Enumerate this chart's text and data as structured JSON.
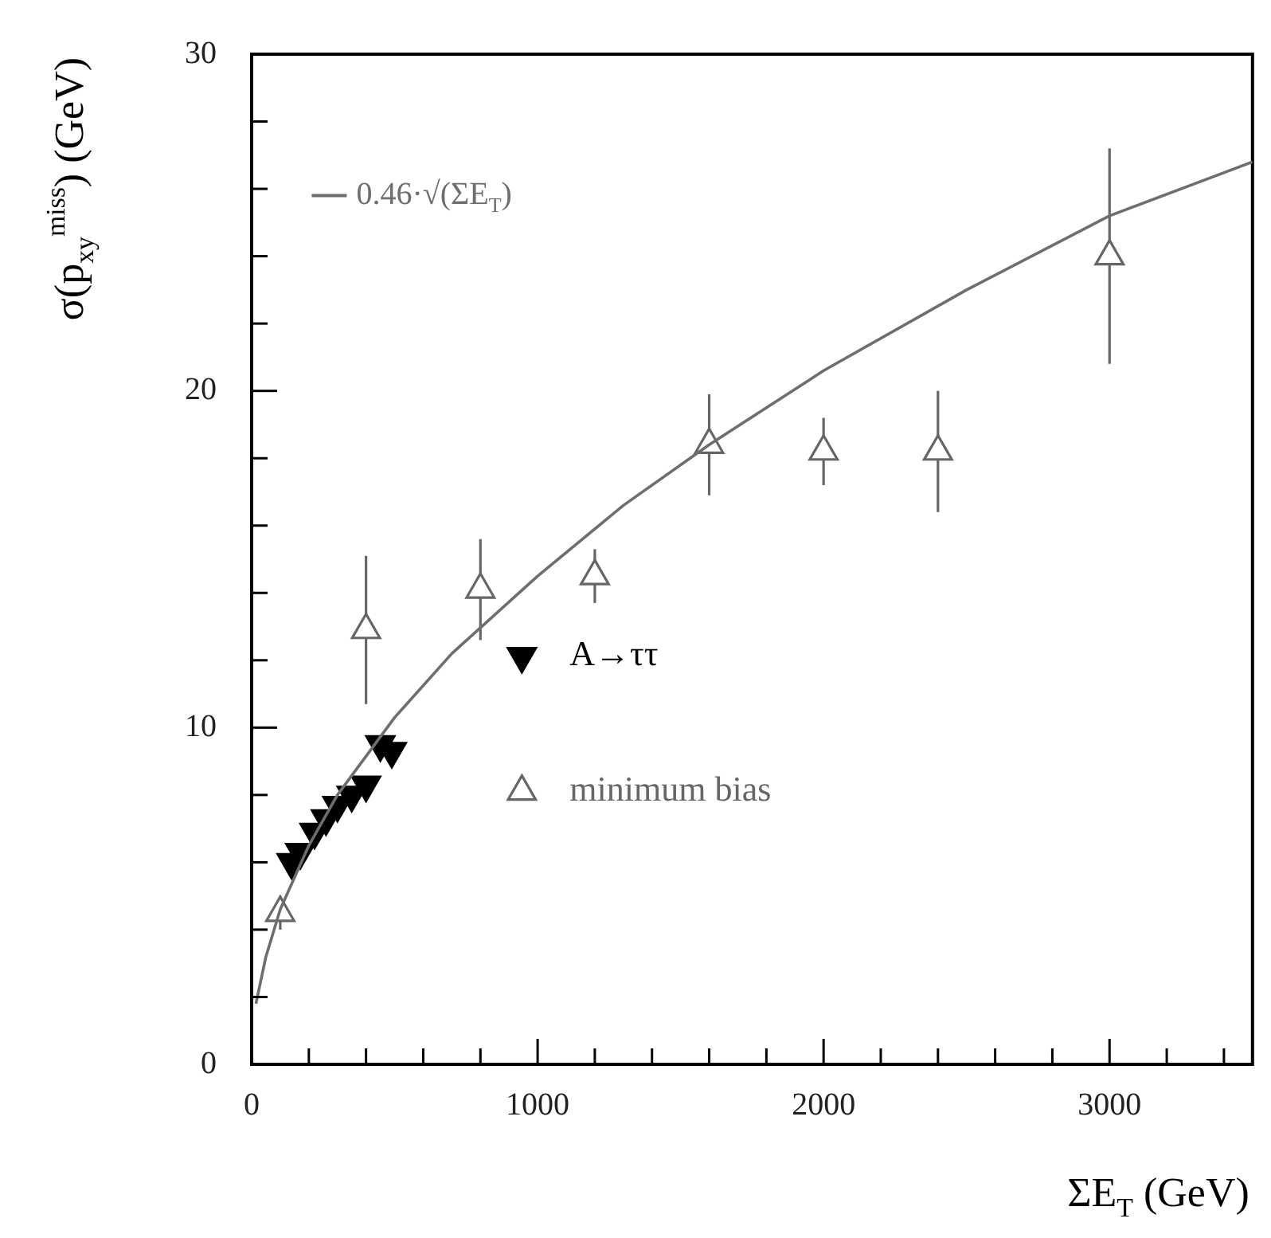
{
  "chart_data": {
    "type": "scatter",
    "xlabel": "ΣE$_{T}$ (GeV)",
    "ylabel": "σ(p$_{xy}$$^{miss}$) (GeV)",
    "xlim": [
      0,
      3500
    ],
    "ylim": [
      0,
      30
    ],
    "xticks": [
      0,
      {
        "value": 200,
        "label": null
      },
      {
        "value": 400,
        "label": null
      },
      {
        "value": 600,
        "label": null
      },
      {
        "value": 800,
        "label": null
      },
      1000,
      {
        "value": 1200,
        "label": null
      },
      {
        "value": 1400,
        "label": null
      },
      {
        "value": 1600,
        "label": null
      },
      {
        "value": 1800,
        "label": null
      },
      2000,
      {
        "value": 2200,
        "label": null
      },
      {
        "value": 2400,
        "label": null
      },
      {
        "value": 2600,
        "label": null
      },
      {
        "value": 2800,
        "label": null
      },
      3000,
      {
        "value": 3200,
        "label": null
      },
      {
        "value": 3400,
        "label": null
      }
    ],
    "yticks": [
      0,
      {
        "value": 2,
        "label": null
      },
      {
        "value": 4,
        "label": null
      },
      {
        "value": 6,
        "label": null
      },
      {
        "value": 8,
        "label": null
      },
      10,
      {
        "value": 12,
        "label": null
      },
      {
        "value": 14,
        "label": null
      },
      {
        "value": 16,
        "label": null
      },
      {
        "value": 18,
        "label": null
      },
      20,
      {
        "value": 22,
        "label": null
      },
      {
        "value": 24,
        "label": null
      },
      {
        "value": 26,
        "label": null
      },
      {
        "value": 28,
        "label": null
      },
      30
    ],
    "legend": "top left",
    "grid": false,
    "series": [
      {
        "type": "line",
        "name": "0.46·√(ΣE$_{T}$)",
        "color": "#6e6e6e",
        "marker": "none",
        "line_style": "solid",
        "x": [
          15,
          50,
          100,
          200,
          300,
          500,
          700,
          1000,
          1300,
          1600,
          2000,
          2500,
          3000,
          3500
        ],
        "values": [
          1.8,
          3.2,
          4.6,
          6.5,
          8.0,
          10.3,
          12.2,
          14.5,
          16.6,
          18.4,
          20.6,
          23.0,
          25.2,
          26.8
        ]
      },
      {
        "name": "A→ττ",
        "color": "#000000",
        "marker": "triangle_down",
        "x": [
          140,
          170,
          220,
          260,
          300,
          350,
          400,
          450,
          490
        ],
        "values": [
          6.0,
          6.3,
          6.9,
          7.3,
          7.7,
          8.0,
          8.3,
          9.5,
          9.3
        ]
      },
      {
        "name": "minimum bias",
        "color": "#666666",
        "marker": "triangle",
        "x": [
          100,
          400,
          800,
          1200,
          1600,
          2000,
          2400,
          3000
        ],
        "values": [
          4.5,
          12.9,
          14.1,
          14.5,
          18.4,
          18.2,
          18.2,
          24.0
        ],
        "errors": [
          0.5,
          2.2,
          1.5,
          0.8,
          1.5,
          1.0,
          1.8,
          3.2
        ]
      }
    ]
  }
}
